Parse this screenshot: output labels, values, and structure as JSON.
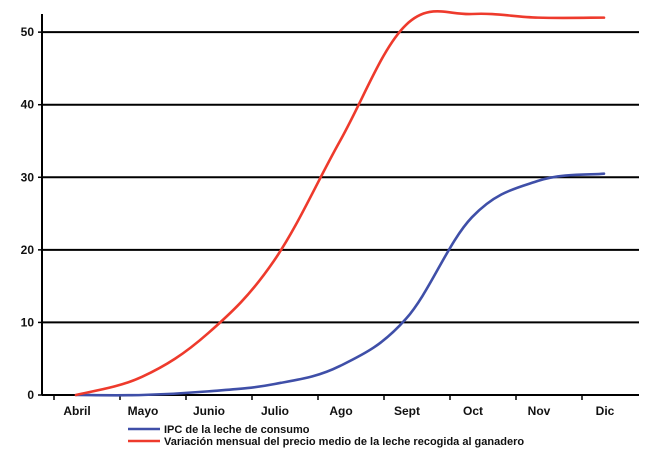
{
  "chart_data": {
    "type": "line",
    "categories": [
      "Abril",
      "Mayo",
      "Junio",
      "Julio",
      "Ago",
      "Sept",
      "Oct",
      "Nov",
      "Dic"
    ],
    "series": [
      {
        "name": "IPC de la leche de consumo",
        "color": "#3f4fa8",
        "values": [
          0,
          0,
          0.5,
          1.5,
          4,
          10.5,
          24.5,
          29.5,
          30.5
        ]
      },
      {
        "name": "Variación mensual del precio medio de la leche recogida al ganadero",
        "color": "#ee3a2c",
        "values": [
          0,
          2.5,
          8.5,
          18.5,
          35,
          51,
          52.5,
          52,
          52
        ]
      }
    ],
    "y_ticks": [
      "0",
      "10",
      "20",
      "30",
      "40",
      "50"
    ],
    "ylim": [
      0,
      52.5
    ],
    "grid": "horizontal",
    "legend_position": "bottom-left"
  }
}
